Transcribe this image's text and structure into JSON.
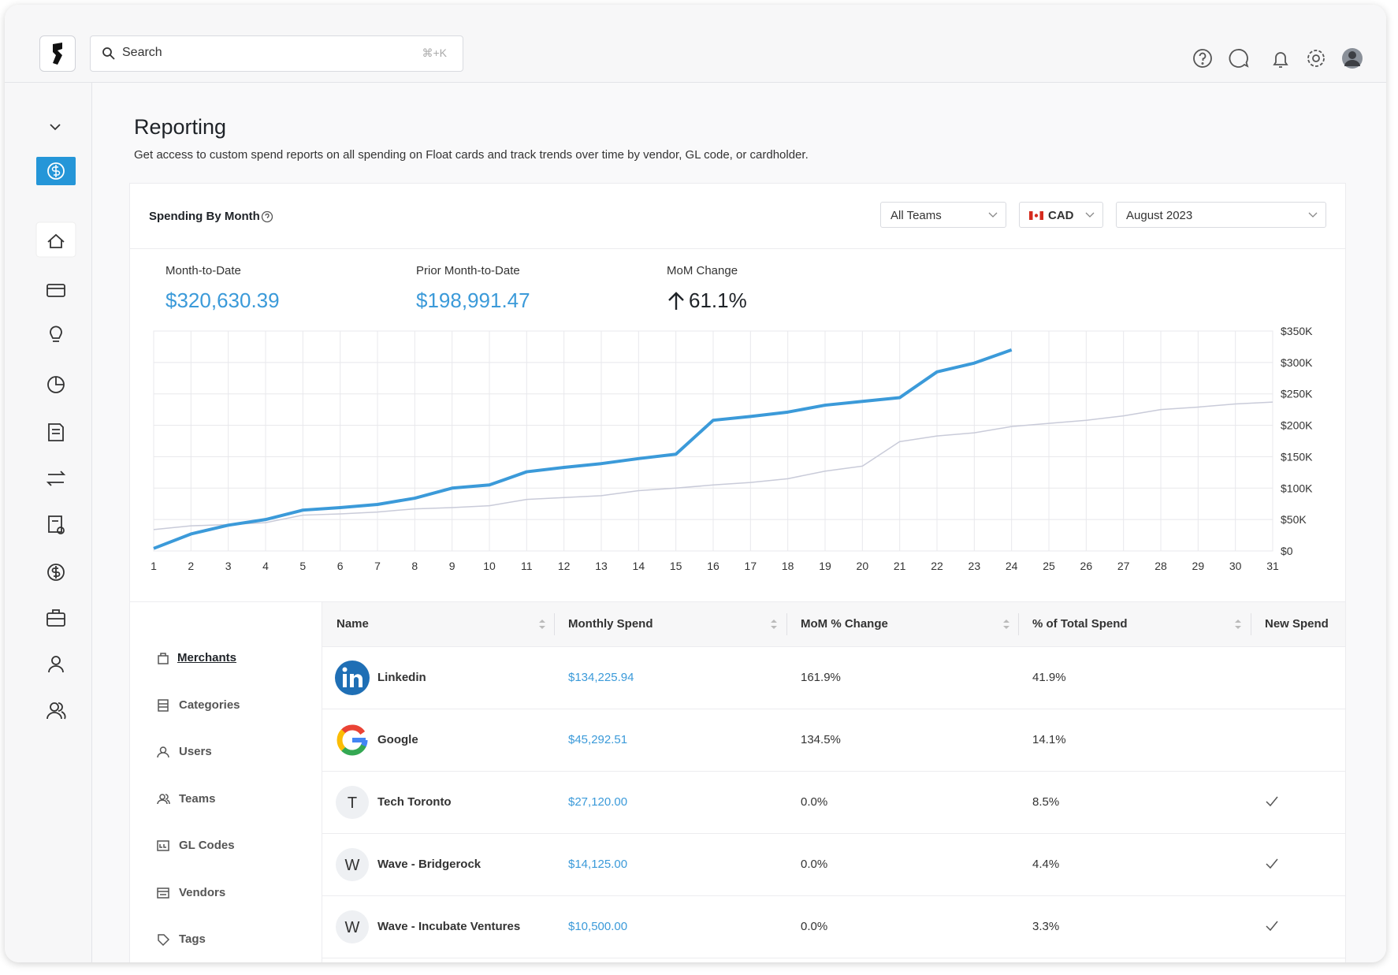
{
  "header": {
    "search_placeholder": "Search",
    "search_shortcut": "⌘+K"
  },
  "page": {
    "title": "Reporting",
    "description": "Get access to custom spend reports on all spending on Float cards and track trends over time by vendor, GL code, or cardholder."
  },
  "card": {
    "title": "Spending By Month",
    "filters": {
      "team": "All Teams",
      "currency": "CAD",
      "month": "August 2023"
    },
    "metrics": [
      {
        "label": "Month-to-Date",
        "value": "$320,630.39"
      },
      {
        "label": "Prior Month-to-Date",
        "value": "$198,991.47"
      },
      {
        "label": "MoM Change",
        "value": "61.1%"
      }
    ]
  },
  "chart_data": {
    "type": "line",
    "x": [
      1,
      2,
      3,
      4,
      5,
      6,
      7,
      8,
      9,
      10,
      11,
      12,
      13,
      14,
      15,
      16,
      17,
      18,
      19,
      20,
      21,
      22,
      23,
      24,
      25,
      26,
      27,
      28,
      29,
      30,
      31
    ],
    "xlim": [
      1,
      31
    ],
    "xticks": [
      1,
      2,
      3,
      4,
      5,
      6,
      7,
      8,
      9,
      10,
      11,
      12,
      13,
      14,
      15,
      16,
      17,
      18,
      19,
      20,
      21,
      22,
      23,
      24,
      25,
      26,
      27,
      28,
      29,
      30,
      31
    ],
    "ylim": [
      0,
      350000
    ],
    "yticks": [
      {
        "value": 0,
        "label": "$0"
      },
      {
        "value": 50000,
        "label": "$50K"
      },
      {
        "value": 100000,
        "label": "$100K"
      },
      {
        "value": 150000,
        "label": "$150K"
      },
      {
        "value": 200000,
        "label": "$200K"
      },
      {
        "value": 250000,
        "label": "$250K"
      },
      {
        "value": 300000,
        "label": "$300K"
      },
      {
        "value": 350000,
        "label": "$350K"
      }
    ],
    "grid": true,
    "series": [
      {
        "color": "#c9cbd9",
        "width": 1.5,
        "values": [
          34000,
          40000,
          42000,
          45000,
          57000,
          59000,
          62000,
          67000,
          69000,
          72000,
          82000,
          85000,
          88000,
          96000,
          100000,
          105000,
          109000,
          115000,
          127000,
          135000,
          174000,
          183000,
          188000,
          198000,
          203000,
          208000,
          215000,
          225000,
          229000,
          234000,
          237000
        ]
      },
      {
        "color": "#3b9ad9",
        "width": 4,
        "values": [
          4000,
          27000,
          41000,
          50000,
          65000,
          69000,
          74000,
          84000,
          100000,
          105000,
          126000,
          133000,
          139000,
          147000,
          154000,
          208000,
          214000,
          221000,
          232000,
          238000,
          244000,
          285000,
          299000,
          320000,
          null,
          null,
          null,
          null,
          null,
          null,
          null
        ]
      }
    ]
  },
  "table_nav": {
    "items": [
      "Merchants",
      "Categories",
      "Users",
      "Teams",
      "GL Codes",
      "Vendors",
      "Tags"
    ]
  },
  "table": {
    "columns": [
      "Name",
      "Monthly Spend",
      "MoM % Change",
      "% of Total Spend",
      "New Spend"
    ],
    "rows": [
      {
        "logo": "linkedin",
        "name": "Linkedin",
        "monthly_spend": "$134,225.94",
        "mom_change": "161.9%",
        "pct_total": "41.9%",
        "new_spend": false
      },
      {
        "logo": "google",
        "name": "Google",
        "monthly_spend": "$45,292.51",
        "mom_change": "134.5%",
        "pct_total": "14.1%",
        "new_spend": false
      },
      {
        "initial": "T",
        "name": "Tech Toronto",
        "monthly_spend": "$27,120.00",
        "mom_change": "0.0%",
        "pct_total": "8.5%",
        "new_spend": true
      },
      {
        "initial": "W",
        "name": "Wave - Bridgerock",
        "monthly_spend": "$14,125.00",
        "mom_change": "0.0%",
        "pct_total": "4.4%",
        "new_spend": true
      },
      {
        "initial": "W",
        "name": "Wave - Incubate Ventures",
        "monthly_spend": "$10,500.00",
        "mom_change": "0.0%",
        "pct_total": "3.3%",
        "new_spend": true
      }
    ]
  }
}
